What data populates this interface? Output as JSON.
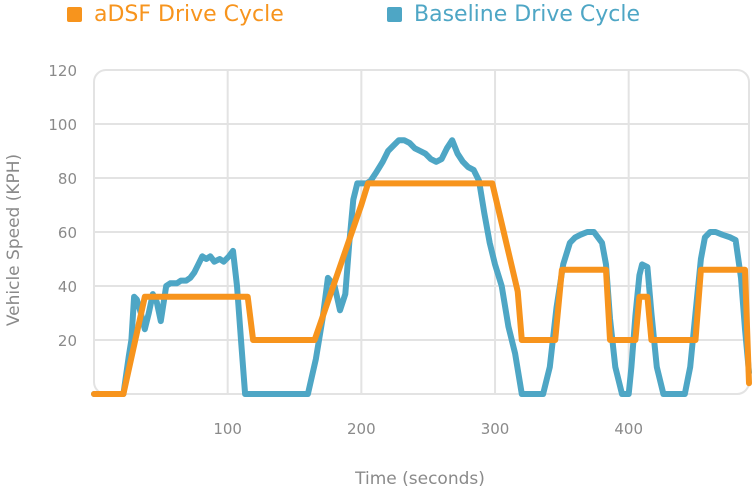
{
  "chart_data": {
    "type": "line",
    "title": "",
    "xlabel": "Time (seconds)",
    "ylabel": "Vehicle Speed (KPH)",
    "xlim": [
      0,
      490
    ],
    "ylim": [
      0,
      120
    ],
    "x_ticks": [
      100,
      200,
      300,
      400
    ],
    "y_ticks": [
      20,
      40,
      60,
      80,
      100,
      120
    ],
    "grid": true,
    "legend_position": "top-left",
    "series": [
      {
        "name": "aDSF Drive Cycle",
        "color": "#f7941d",
        "x": [
          0,
          10,
          22,
          38,
          115,
          119,
          165,
          200,
          205,
          210,
          298,
          317,
          320,
          340,
          345,
          350,
          356,
          383,
          386,
          398,
          401,
          405,
          408,
          414,
          417,
          421,
          424,
          450,
          454,
          480,
          487,
          490
        ],
        "y": [
          0,
          0,
          0,
          36,
          36,
          20,
          20,
          70,
          78,
          78,
          78,
          38,
          20,
          20,
          20,
          46,
          46,
          46,
          20,
          20,
          20,
          20,
          36,
          36,
          20,
          20,
          20,
          20,
          46,
          46,
          46,
          4
        ]
      },
      {
        "name": "Baseline Drive Cycle",
        "color": "#4ea6c5",
        "x": [
          0,
          22,
          26,
          28,
          30,
          32,
          35,
          38,
          41,
          44,
          47,
          50,
          54,
          57,
          62,
          65,
          69,
          72,
          75,
          78,
          81,
          84,
          87,
          90,
          94,
          97,
          101,
          104,
          107,
          110,
          113,
          117,
          123,
          127,
          160,
          166,
          171,
          175,
          180,
          184,
          188,
          191,
          194,
          197,
          201,
          204,
          207,
          211,
          216,
          220,
          224,
          228,
          232,
          236,
          240,
          244,
          248,
          252,
          256,
          260,
          264,
          268,
          272,
          276,
          280,
          284,
          288,
          292,
          296,
          300,
          305,
          310,
          315,
          320,
          326,
          331,
          336,
          341,
          346,
          351,
          356,
          360,
          364,
          369,
          374,
          380,
          383,
          386,
          390,
          395,
          400,
          402,
          405,
          408,
          410,
          414,
          417,
          421,
          426,
          431,
          437,
          442,
          446,
          450,
          454,
          457,
          461,
          465,
          470,
          476,
          480,
          484,
          487,
          490
        ],
        "y": [
          0,
          0,
          14,
          20,
          36,
          35,
          30,
          24,
          30,
          37,
          34,
          27,
          40,
          41,
          41,
          42,
          42,
          43,
          45,
          48,
          51,
          50,
          51,
          49,
          50,
          49,
          51,
          53,
          40,
          20,
          0,
          0,
          0,
          0,
          0,
          13,
          28,
          43,
          40,
          31,
          37,
          56,
          72,
          78,
          78,
          78,
          79,
          82,
          86,
          90,
          92,
          94,
          94,
          93,
          91,
          90,
          89,
          87,
          86,
          87,
          91,
          94,
          89,
          86,
          84,
          83,
          79,
          67,
          56,
          48,
          40,
          25,
          15,
          0,
          0,
          0,
          0,
          10,
          32,
          48,
          56,
          58,
          59,
          60,
          60,
          56,
          48,
          28,
          10,
          0,
          0,
          10,
          29,
          44,
          48,
          47,
          30,
          10,
          0,
          0,
          0,
          0,
          10,
          30,
          50,
          58,
          60,
          60,
          59,
          58,
          57,
          43,
          24,
          8
        ]
      }
    ]
  }
}
